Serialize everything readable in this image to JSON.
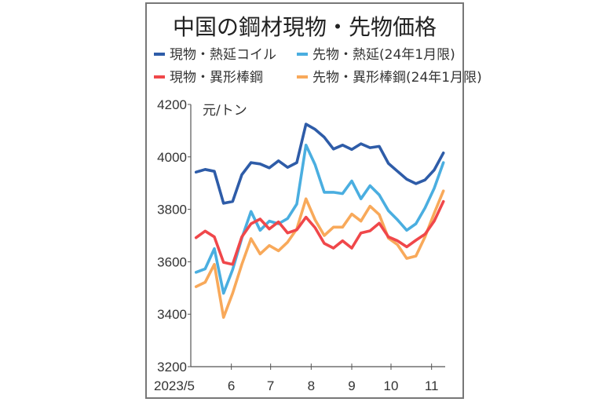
{
  "chart_data": {
    "type": "line",
    "title": "中国の鋼材現物・先物価格",
    "ylabel": "元/トン",
    "ylim": [
      3200,
      4200
    ],
    "yticks": [
      "4200",
      "4000",
      "3800",
      "3600",
      "3400",
      "3200"
    ],
    "xticks": [
      {
        "label": "2023/5",
        "date": "2023-05-01"
      },
      {
        "label": "6",
        "date": "2023-06-01"
      },
      {
        "label": "7",
        "date": "2023-07-01"
      },
      {
        "label": "8",
        "date": "2023-08-01"
      },
      {
        "label": "9",
        "date": "2023-09-01"
      },
      {
        "label": "10",
        "date": "2023-10-01"
      },
      {
        "label": "11",
        "date": "2023-11-01"
      }
    ],
    "xlim": [
      "2023-05-01",
      "2023-11-15"
    ],
    "grid": false,
    "legend_placement": "top",
    "x_start": "2023-05-05",
    "x_step_days": 7,
    "series": [
      {
        "name": "現物・熱延コイル",
        "color": "#2e5ca8",
        "values": [
          3942,
          3952,
          3945,
          3823,
          3830,
          3932,
          3978,
          3973,
          3958,
          3985,
          3960,
          3978,
          4125,
          4105,
          4075,
          4030,
          4045,
          4028,
          4050,
          4035,
          4040,
          3975,
          3945,
          3915,
          3898,
          3912,
          3950,
          4015
        ]
      },
      {
        "name": "先物・熱延(24年1月限)",
        "color": "#4aaee0",
        "values": [
          3560,
          3573,
          3650,
          3480,
          3570,
          3690,
          3792,
          3720,
          3755,
          3745,
          3765,
          3820,
          4045,
          3970,
          3865,
          3865,
          3860,
          3908,
          3840,
          3890,
          3855,
          3795,
          3760,
          3720,
          3745,
          3805,
          3880,
          3978
        ]
      },
      {
        "name": "現物・異形棒鋼",
        "color": "#f0474a",
        "values": [
          3692,
          3717,
          3695,
          3598,
          3590,
          3695,
          3745,
          3763,
          3725,
          3752,
          3710,
          3722,
          3770,
          3730,
          3670,
          3652,
          3680,
          3652,
          3710,
          3718,
          3747,
          3695,
          3680,
          3657,
          3682,
          3705,
          3755,
          3830
        ]
      },
      {
        "name": "先物・異形棒鋼(24年1月限)",
        "color": "#f8a95a",
        "values": [
          3505,
          3522,
          3590,
          3388,
          3480,
          3590,
          3688,
          3630,
          3662,
          3642,
          3675,
          3725,
          3840,
          3760,
          3700,
          3732,
          3732,
          3782,
          3755,
          3812,
          3780,
          3690,
          3665,
          3613,
          3622,
          3695,
          3785,
          3870
        ]
      }
    ]
  }
}
